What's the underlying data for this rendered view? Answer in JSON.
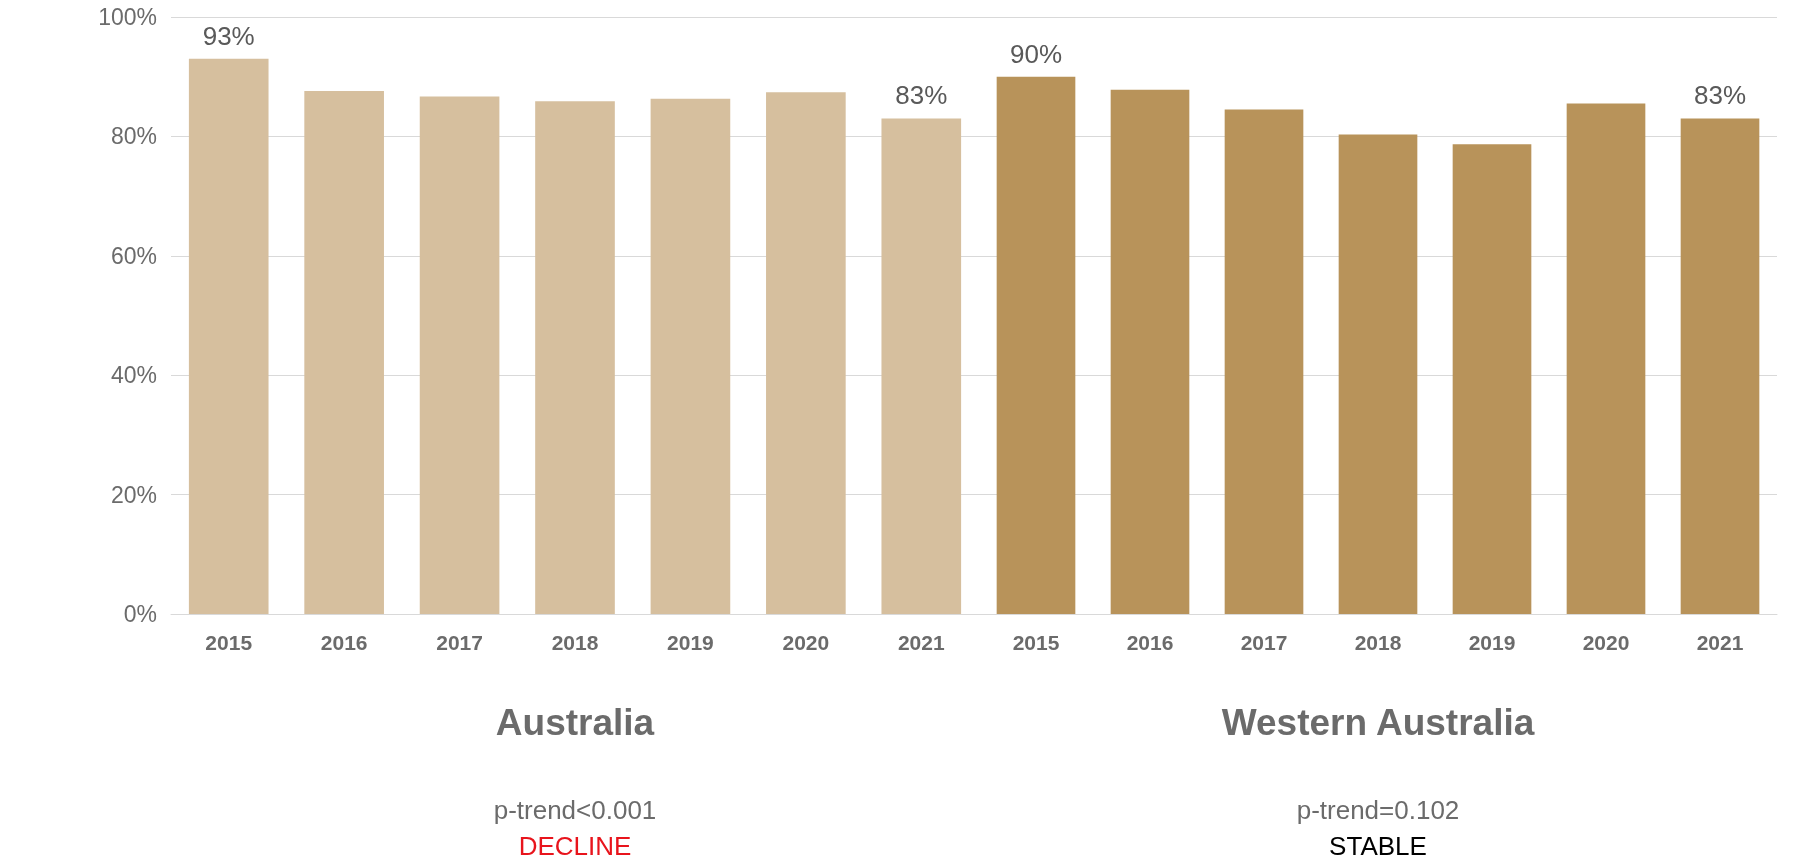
{
  "chart_data": [
    {
      "type": "bar",
      "xlabel": "Australia",
      "categories": [
        "2015",
        "2016",
        "2017",
        "2018",
        "2019",
        "2020",
        "2021"
      ],
      "values": [
        93,
        87.6,
        86.7,
        85.9,
        86.3,
        87.4,
        83
      ],
      "value_labels": [
        "93%",
        null,
        null,
        null,
        null,
        null,
        "83%"
      ],
      "color": "#d6bf9e",
      "ylim": [
        0,
        100
      ],
      "yticks": [
        {
          "value": 0,
          "label": "0%"
        },
        {
          "value": 20,
          "label": "20%"
        },
        {
          "value": 40,
          "label": "40%"
        },
        {
          "value": 60,
          "label": "60%"
        },
        {
          "value": 80,
          "label": "80%"
        },
        {
          "value": 100,
          "label": "100%"
        }
      ],
      "grid": "y",
      "annotations": [
        "p-trend<0.001",
        "DECLINE"
      ]
    },
    {
      "type": "bar",
      "xlabel": "Western Australia",
      "categories": [
        "2015",
        "2016",
        "2017",
        "2018",
        "2019",
        "2020",
        "2021"
      ],
      "values": [
        90,
        87.8,
        84.5,
        80.3,
        78.7,
        85.5,
        83
      ],
      "value_labels": [
        "90%",
        null,
        null,
        null,
        null,
        null,
        "83%"
      ],
      "color": "#b8935a",
      "ylim": [
        0,
        100
      ],
      "yticks": [
        0,
        20,
        40,
        60,
        80,
        100
      ],
      "grid": "y",
      "tick_labels": "x",
      "annotations": [
        "p-trend=0.102",
        "STABLE"
      ]
    }
  ]
}
